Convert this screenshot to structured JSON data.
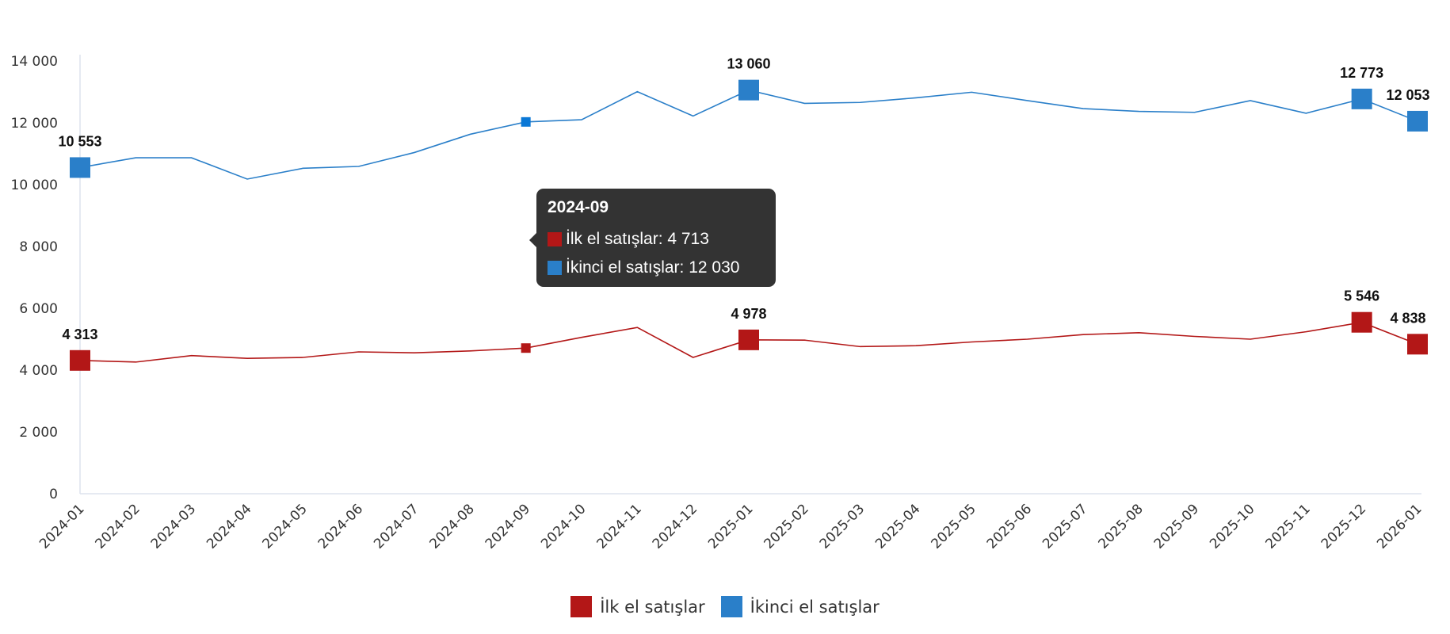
{
  "chart_data": {
    "type": "line",
    "categories": [
      "2024-01",
      "2024-02",
      "2024-03",
      "2024-04",
      "2024-05",
      "2024-06",
      "2024-07",
      "2024-08",
      "2024-09",
      "2024-10",
      "2024-11",
      "2024-12",
      "2025-01",
      "2025-02",
      "2025-03",
      "2025-04",
      "2025-05",
      "2025-06",
      "2025-07",
      "2025-08",
      "2025-09",
      "2025-10",
      "2025-11",
      "2025-12",
      "2026-01"
    ],
    "ylim": [
      0,
      14000
    ],
    "yticks": [
      0,
      2000,
      4000,
      6000,
      8000,
      10000,
      12000,
      14000
    ],
    "ytick_labels": [
      "0",
      "2 000",
      "4 000",
      "6 000",
      "8 000",
      "10 000",
      "12 000",
      "14 000"
    ],
    "legend_position": "bottom",
    "grid": false,
    "series": [
      {
        "name": "İlk el satışlar",
        "color": "#b31717",
        "values": [
          4313,
          4260,
          4470,
          4380,
          4410,
          4590,
          4560,
          4620,
          4713,
          5060,
          5380,
          4410,
          4978,
          4970,
          4760,
          4790,
          4910,
          5000,
          5150,
          5210,
          5090,
          5000,
          5240,
          5546,
          4838
        ]
      },
      {
        "name": "İkinci el satışlar",
        "color": "#2a7fc9",
        "values": [
          10553,
          10870,
          10870,
          10180,
          10530,
          10590,
          11040,
          11630,
          12030,
          12100,
          13010,
          12220,
          13060,
          12630,
          12660,
          12810,
          12990,
          12720,
          12460,
          12370,
          12340,
          12720,
          12310,
          12773,
          12053
        ]
      }
    ],
    "labeled_points": [
      {
        "series": 0,
        "index": 0,
        "label": "4 313"
      },
      {
        "series": 0,
        "index": 12,
        "label": "4 978"
      },
      {
        "series": 0,
        "index": 23,
        "label": "5 546"
      },
      {
        "series": 0,
        "index": 24,
        "label": "4 838"
      },
      {
        "series": 1,
        "index": 0,
        "label": "10 553"
      },
      {
        "series": 1,
        "index": 12,
        "label": "13 060"
      },
      {
        "series": 1,
        "index": 23,
        "label": "12 773"
      },
      {
        "series": 1,
        "index": 24,
        "label": "12 053"
      }
    ],
    "hover_index": 8
  },
  "tooltip": {
    "title": "2024-09",
    "rows": [
      {
        "text": "İlk el satışlar: 4 713",
        "color": "#b31717"
      },
      {
        "text": "İkinci el satışlar: 12 030",
        "color": "#2a7fc9"
      }
    ]
  },
  "legend": [
    {
      "label": "İlk el satışlar",
      "color": "#b31717"
    },
    {
      "label": "İkinci el satışlar",
      "color": "#2a7fc9"
    }
  ]
}
